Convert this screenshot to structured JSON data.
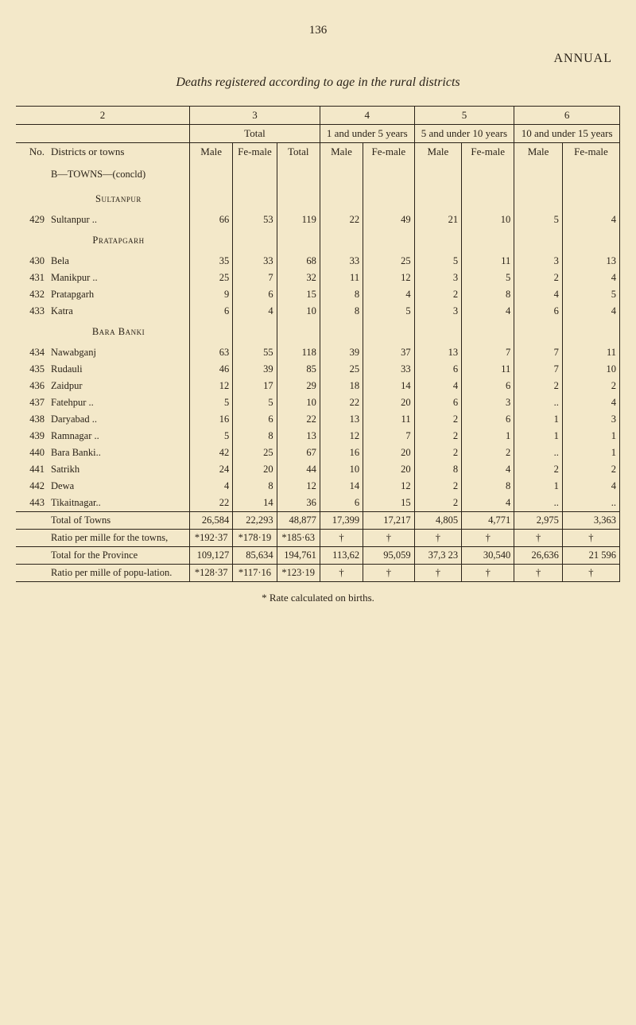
{
  "page_number": "136",
  "running_title": "ANNUAL",
  "subtitle": "Deaths registered according to age in the rural districts",
  "col_numbers": [
    "2",
    "3",
    "4",
    "5",
    "6"
  ],
  "groups": {
    "total": "Total",
    "u5": "1 and under 5 years",
    "u10": "5 and under 10 years",
    "u15": "10 and under 15 years"
  },
  "sub_headers": {
    "no": "No.",
    "districts": "Districts or towns",
    "male": "Male",
    "female": "Fe-male",
    "total": "Total"
  },
  "section_b": "B—TOWNS—(concld)",
  "regions": {
    "sultanpur": "Sultanpur",
    "pratapgarh": "Pratapgarh",
    "barabanki": "Bara Banki"
  },
  "rows": [
    {
      "no": "429",
      "name": "Sultanpur ..",
      "m": "66",
      "f": "53",
      "t": "119",
      "m5": "22",
      "f5": "49",
      "m10": "21",
      "f10": "10",
      "m15": "5",
      "f15": "4"
    },
    {
      "no": "430",
      "name": "Bela",
      "m": "35",
      "f": "33",
      "t": "68",
      "m5": "33",
      "f5": "25",
      "m10": "5",
      "f10": "11",
      "m15": "3",
      "f15": "13"
    },
    {
      "no": "431",
      "name": "Manikpur ..",
      "m": "25",
      "f": "7",
      "t": "32",
      "m5": "11",
      "f5": "12",
      "m10": "3",
      "f10": "5",
      "m15": "2",
      "f15": "4"
    },
    {
      "no": "432",
      "name": "Pratapgarh",
      "m": "9",
      "f": "6",
      "t": "15",
      "m5": "8",
      "f5": "4",
      "m10": "2",
      "f10": "8",
      "m15": "4",
      "f15": "5"
    },
    {
      "no": "433",
      "name": "Katra",
      "m": "6",
      "f": "4",
      "t": "10",
      "m5": "8",
      "f5": "5",
      "m10": "3",
      "f10": "4",
      "m15": "6",
      "f15": "4"
    },
    {
      "no": "434",
      "name": "Nawabganj",
      "m": "63",
      "f": "55",
      "t": "118",
      "m5": "39",
      "f5": "37",
      "m10": "13",
      "f10": "7",
      "m15": "7",
      "f15": "11"
    },
    {
      "no": "435",
      "name": "Rudauli",
      "m": "46",
      "f": "39",
      "t": "85",
      "m5": "25",
      "f5": "33",
      "m10": "6",
      "f10": "11",
      "m15": "7",
      "f15": "10"
    },
    {
      "no": "436",
      "name": "Zaidpur",
      "m": "12",
      "f": "17",
      "t": "29",
      "m5": "18",
      "f5": "14",
      "m10": "4",
      "f10": "6",
      "m15": "2",
      "f15": "2"
    },
    {
      "no": "437",
      "name": "Fatehpur ..",
      "m": "5",
      "f": "5",
      "t": "10",
      "m5": "22",
      "f5": "20",
      "m10": "6",
      "f10": "3",
      "m15": "..",
      "f15": "4"
    },
    {
      "no": "438",
      "name": "Daryabad ..",
      "m": "16",
      "f": "6",
      "t": "22",
      "m5": "13",
      "f5": "11",
      "m10": "2",
      "f10": "6",
      "m15": "1",
      "f15": "3"
    },
    {
      "no": "439",
      "name": "Ramnagar ..",
      "m": "5",
      "f": "8",
      "t": "13",
      "m5": "12",
      "f5": "7",
      "m10": "2",
      "f10": "1",
      "m15": "1",
      "f15": "1"
    },
    {
      "no": "440",
      "name": "Bara Banki..",
      "m": "42",
      "f": "25",
      "t": "67",
      "m5": "16",
      "f5": "20",
      "m10": "2",
      "f10": "2",
      "m15": "..",
      "f15": "1"
    },
    {
      "no": "441",
      "name": "Satrikh",
      "m": "24",
      "f": "20",
      "t": "44",
      "m5": "10",
      "f5": "20",
      "m10": "8",
      "f10": "4",
      "m15": "2",
      "f15": "2"
    },
    {
      "no": "442",
      "name": "Dewa",
      "m": "4",
      "f": "8",
      "t": "12",
      "m5": "14",
      "f5": "12",
      "m10": "2",
      "f10": "8",
      "m15": "1",
      "f15": "4"
    },
    {
      "no": "443",
      "name": "Tikaitnagar..",
      "m": "22",
      "f": "14",
      "t": "36",
      "m5": "6",
      "f5": "15",
      "m10": "2",
      "f10": "4",
      "m15": "..",
      "f15": ".."
    }
  ],
  "footer": {
    "total_towns": {
      "label": "Total of Towns",
      "m": "26,584",
      "f": "22,293",
      "t": "48,877",
      "m5": "17,399",
      "f5": "17,217",
      "m10": "4,805",
      "f10": "4,771",
      "m15": "2,975",
      "f15": "3,363"
    },
    "ratio_towns": {
      "label": "Ratio per mille for the towns,",
      "m": "*192·37",
      "f": "*178·19",
      "t": "*185·63",
      "m5": "†",
      "f5": "†",
      "m10": "†",
      "f10": "†",
      "m15": "†",
      "f15": "†"
    },
    "total_prov": {
      "label": "Total for the Province",
      "m": "109,127",
      "f": "85,634",
      "t": "194,761",
      "m5": "113,62",
      "f5": "95,059",
      "m10": "37,3 23",
      "f10": "30,540",
      "m15": "26,636",
      "f15": "21 596"
    },
    "ratio_pop": {
      "label": "Ratio per mille of  popu-lation.",
      "m": "*128·37",
      "f": "*117·16",
      "t": "*123·19",
      "m5": "†",
      "f5": "†",
      "m10": "†",
      "f10": "†",
      "m15": "†",
      "f15": "†"
    }
  },
  "footnote": "* Rate calculated on births."
}
